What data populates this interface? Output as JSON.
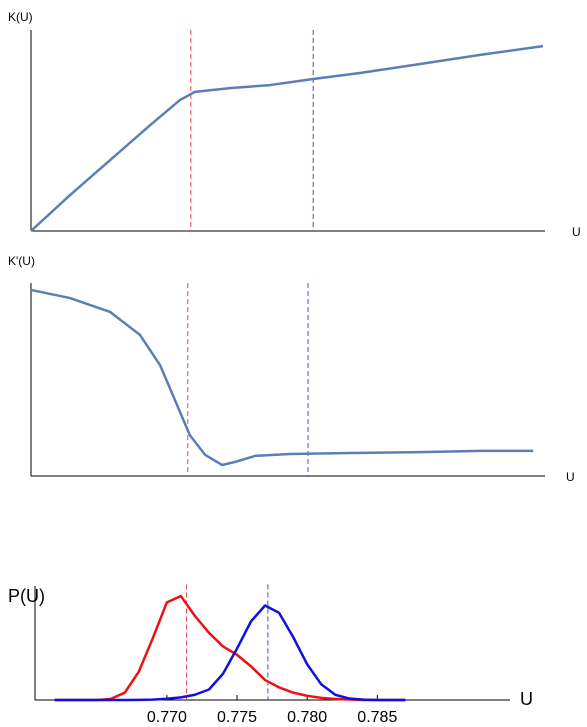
{
  "chart_data": [
    {
      "type": "line",
      "y_label": "K(U)",
      "x_label": "U",
      "xlim": [
        0,
        1
      ],
      "ylim": [
        0,
        1
      ],
      "x": [
        0,
        0.076,
        0.154,
        0.232,
        0.29,
        0.319,
        0.387,
        0.465,
        0.549,
        0.64,
        0.757,
        0.874,
        0.996
      ],
      "series": [
        {
          "color": "#5b7fb4",
          "values": [
            0,
            0.179,
            0.353,
            0.527,
            0.652,
            0.692,
            0.711,
            0.726,
            0.756,
            0.786,
            0.831,
            0.876,
            0.92
          ]
        }
      ],
      "vlines": [
        {
          "x": 0.311,
          "color": "#e8474a"
        },
        {
          "x": 0.549,
          "color": "#4a4ae0"
        }
      ]
    },
    {
      "type": "line",
      "y_label": "K'(U)",
      "x_label": "U",
      "xlim": [
        0,
        1
      ],
      "ylim": [
        0,
        1
      ],
      "x": [
        0,
        0.076,
        0.154,
        0.212,
        0.251,
        0.28,
        0.309,
        0.339,
        0.372,
        0.397,
        0.436,
        0.504,
        0.621,
        0.757,
        0.874,
        0.977
      ],
      "series": [
        {
          "color": "#5b7fb4",
          "values": [
            0.964,
            0.922,
            0.85,
            0.731,
            0.575,
            0.394,
            0.212,
            0.109,
            0.057,
            0.073,
            0.104,
            0.114,
            0.119,
            0.124,
            0.13,
            0.13
          ]
        }
      ],
      "vlines": [
        {
          "x": 0.305,
          "color": "#e8474a"
        },
        {
          "x": 0.539,
          "color": "#4a4ae0"
        }
      ]
    },
    {
      "type": "line",
      "y_label": "P(U)",
      "x_label": "U",
      "xlim": [
        0.7606,
        0.7941
      ],
      "ylim": [
        0,
        1.1
      ],
      "xticks": [
        {
          "value": 0.77,
          "label": "0.770"
        },
        0.775,
        {
          "value": 0.78,
          "label": "0.780"
        },
        0.785
      ],
      "x": [
        0.762,
        0.763,
        0.764,
        0.765,
        0.766,
        0.767,
        0.768,
        0.769,
        0.77,
        0.771,
        0.772,
        0.773,
        0.774,
        0.775,
        0.776,
        0.777,
        0.778,
        0.779,
        0.78,
        0.781,
        0.782,
        0.783,
        0.784,
        0.785,
        0.786,
        0.787
      ],
      "series": [
        {
          "color": "#ee1111",
          "values": [
            0,
            0,
            0,
            0,
            0.01,
            0.07,
            0.27,
            0.59,
            0.93,
            0.99,
            0.8,
            0.64,
            0.51,
            0.43,
            0.32,
            0.19,
            0.12,
            0.07,
            0.04,
            0.02,
            0.01,
            0.005,
            0,
            0,
            0,
            0
          ]
        },
        {
          "color": "#1111dd",
          "values": [
            0,
            0,
            0,
            0,
            0,
            0,
            0.001,
            0.004,
            0.012,
            0.025,
            0.05,
            0.1,
            0.25,
            0.49,
            0.75,
            0.9,
            0.83,
            0.6,
            0.34,
            0.15,
            0.05,
            0.014,
            0.003,
            0.0005,
            0,
            0
          ]
        }
      ],
      "vlines": [
        {
          "x": 0.7714,
          "color": "#e8474a"
        },
        {
          "x": 0.7772,
          "color": "#4a4ae0"
        }
      ]
    }
  ]
}
